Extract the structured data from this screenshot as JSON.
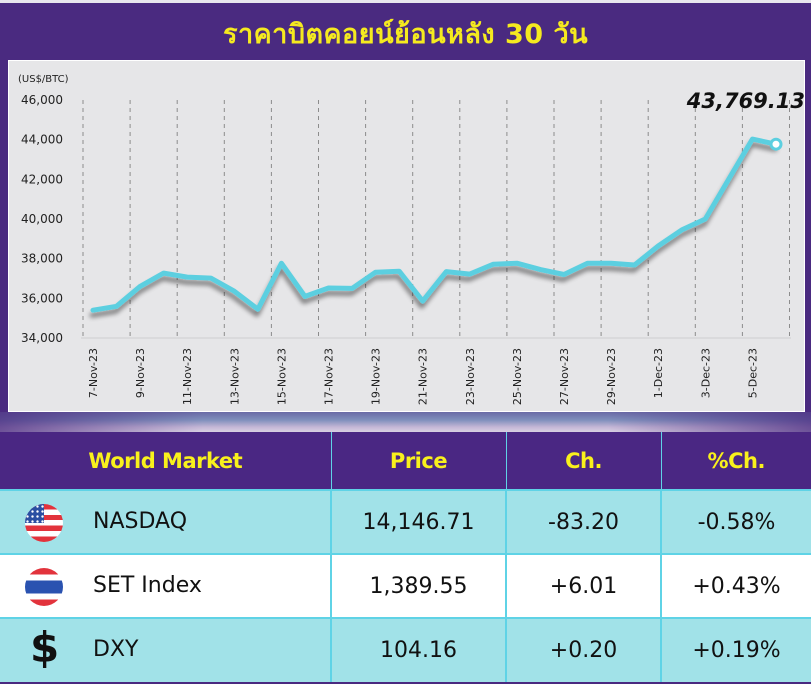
{
  "title": "ราคาบิตคอยน์ย้อนหลัง 30 วัน",
  "chart_data": {
    "type": "line",
    "title": "ราคาบิตคอยน์ย้อนหลัง 30 วัน",
    "ylabel": "(US$/BTC)",
    "xlabel": "",
    "ylim": [
      34000,
      46000
    ],
    "yticks": [
      "46,000",
      "44,000",
      "42,000",
      "40,000",
      "38,000",
      "36,000",
      "34,000"
    ],
    "ytick_values": [
      46000,
      44000,
      42000,
      40000,
      38000,
      36000,
      34000
    ],
    "xtick_labels": [
      "7-Nov-23",
      "9-Nov-23",
      "11-Nov-23",
      "13-Nov-23",
      "15-Nov-23",
      "17-Nov-23",
      "19-Nov-23",
      "21-Nov-23",
      "23-Nov-23",
      "25-Nov-23",
      "27-Nov-23",
      "29-Nov-23",
      "1-Dec-23",
      "3-Dec-23",
      "5-Dec-23"
    ],
    "grid": "vertical dashed",
    "x": [
      "7-Nov-23",
      "8-Nov-23",
      "9-Nov-23",
      "10-Nov-23",
      "11-Nov-23",
      "12-Nov-23",
      "13-Nov-23",
      "14-Nov-23",
      "15-Nov-23",
      "16-Nov-23",
      "17-Nov-23",
      "18-Nov-23",
      "19-Nov-23",
      "20-Nov-23",
      "21-Nov-23",
      "22-Nov-23",
      "23-Nov-23",
      "24-Nov-23",
      "25-Nov-23",
      "26-Nov-23",
      "27-Nov-23",
      "28-Nov-23",
      "29-Nov-23",
      "30-Nov-23",
      "1-Dec-23",
      "2-Dec-23",
      "3-Dec-23",
      "4-Dec-23",
      "5-Dec-23",
      "6-Dec-23"
    ],
    "series": [
      {
        "name": "BTC",
        "color": "#5ccfe0",
        "values": [
          35400,
          35600,
          36600,
          37270,
          37070,
          37020,
          36360,
          35450,
          37770,
          36100,
          36520,
          36500,
          37320,
          37370,
          35860,
          37350,
          37220,
          37720,
          37770,
          37450,
          37200,
          37770,
          37770,
          37680,
          38640,
          39450,
          40000,
          42020,
          44030,
          43769.13
        ]
      }
    ],
    "annotation": "43,769.13"
  },
  "table": {
    "headers": [
      "World Market",
      "Price",
      "Ch.",
      "%Ch."
    ],
    "rows": [
      {
        "icon": "us-flag-icon",
        "name": "NASDAQ",
        "price": "14,146.71",
        "change": "-83.20",
        "pct_change": "-0.58%"
      },
      {
        "icon": "thai-flag-icon",
        "name": "SET Index",
        "price": "1,389.55",
        "change": "+6.01",
        "pct_change": "+0.43%"
      },
      {
        "icon": "dollar-icon",
        "name": "DXY",
        "price": "104.16",
        "change": "+0.20",
        "pct_change": "+0.19%"
      }
    ]
  },
  "colors": {
    "background": "#4a2a80",
    "title": "#f5ea1f",
    "line": "#5ccfe0",
    "header_bg": "#4a2783",
    "header_text": "#f9f11c",
    "row_alt": "#a1e2e8",
    "border": "#5fd3e6"
  }
}
